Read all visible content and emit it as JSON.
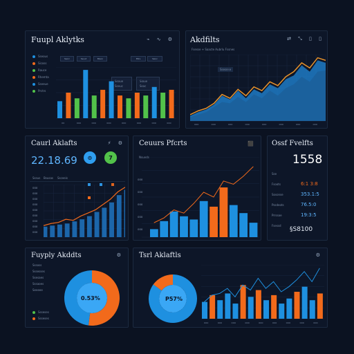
{
  "colors": {
    "orange": "#f26a1b",
    "blue": "#1e90e0",
    "green": "#52c24a",
    "navy": "#0b1221",
    "panel": "#0d1628",
    "border": "#1c2a40"
  },
  "p1": {
    "title": "Fuupl Aklytks",
    "icons": [
      "⌁",
      "∿",
      "⚙"
    ],
    "tabs": [
      "Ssorc",
      "Ssuut",
      "Bleoc",
      "Ellrs",
      "Ssioc"
    ],
    "legend": [
      {
        "label": "Sseous",
        "color": "#1e90e0"
      },
      {
        "label": "Sicoss",
        "color": "#f26a1b"
      },
      {
        "label": "Rauce",
        "color": "#52c24a"
      },
      {
        "label": "Rhemta",
        "color": "#f26a1b"
      },
      {
        "label": "Sseeue",
        "color": "#1e90e0"
      },
      {
        "label": "Prctrs",
        "color": "#52c24a"
      }
    ],
    "tooltip1": [
      "Ssoue",
      "Sseuc"
    ],
    "tooltip2": [
      "Sioue",
      "Ssoc"
    ],
    "xticks": [
      "oo",
      "ooo",
      "ooo",
      "ooo",
      "ooo",
      "ooo",
      "ooo",
      "ooo"
    ]
  },
  "p2": {
    "title": "Akdfilts",
    "icons": [
      "⇄",
      "⤡",
      "▯",
      "▯"
    ],
    "subtitle": "Fsesse + Saacte Aubrlu Fssnes",
    "label": "Ssesese",
    "xticks": [
      "ooo",
      "ooo",
      "ooo",
      "ooo",
      "ooo",
      "ooo",
      "ooo",
      "ooo"
    ]
  },
  "p3": {
    "title": "Caurl Aklafts",
    "icons": [
      "⚡",
      "⚙"
    ],
    "value": "22.18.69",
    "badge1": "⊙",
    "badge2": "7",
    "toolbar": [
      "Sssus",
      "Bsusas",
      "Ssceeis"
    ],
    "yticks": [
      "ooo",
      "ooo",
      "ooo",
      "ooo",
      "ooo",
      "ooo",
      "ooo",
      "ooo",
      "ooo"
    ]
  },
  "p4": {
    "title": "Ceuurs Pfcrts",
    "icon": "⬛",
    "label": "Nsueds",
    "yticks": [
      "ooo",
      "ooo",
      "ooo",
      "ooo",
      "ooo"
    ]
  },
  "p5": {
    "title": "Ossf Fvelfts",
    "value": "1558",
    "rows": [
      {
        "label": "Sse",
        "value": ""
      },
      {
        "label": "Fsoots",
        "value": "6:1 3:8"
      },
      {
        "label": "Sosonse",
        "value": "353.1:5"
      },
      {
        "label": "Pssdeots",
        "value": "76.5:0"
      },
      {
        "label": "Prrssoe",
        "value": "19:3:5"
      },
      {
        "label": "Fsessd",
        "value": ""
      }
    ],
    "footer": "§S8100"
  },
  "p6": {
    "title": "Fuyply Akddts",
    "icon": "⚙",
    "donut_label": "0.53%",
    "legend": [
      "Sssoss",
      "Sssesses",
      "Ssesaes",
      "Sssaoes",
      "Seeeee"
    ],
    "legend_bottom": [
      {
        "label": "Ssseses",
        "color": "#52c24a"
      },
      {
        "label": "Ssseses",
        "color": "#f26a1b"
      }
    ]
  },
  "p7": {
    "title": "Tsrl Aklaftls",
    "icon": "⚙",
    "donut_label": "P57%",
    "xticks": [
      "ooo",
      "ooo",
      "ooo",
      "ooo",
      "ooo",
      "ooo",
      "ooo",
      "ooo",
      "ooo"
    ]
  },
  "chart_data": [
    {
      "type": "bar",
      "series": [
        {
          "values": [
            6,
            9,
            7,
            17,
            8,
            10,
            13,
            8,
            7,
            9,
            8,
            11,
            9,
            10
          ],
          "colors": [
            "#1e90e0",
            "#f26a1b",
            "#52c24a",
            "#1e90e0",
            "#52c24a",
            "#f26a1b",
            "#1e90e0",
            "#f26a1b",
            "#52c24a",
            "#f26a1b",
            "#52c24a",
            "#1e90e0",
            "#52c24a",
            "#f26a1b"
          ]
        }
      ]
    },
    {
      "type": "area",
      "series": [
        {
          "values": [
            8,
            14,
            18,
            26,
            40,
            34,
            48,
            36,
            50,
            44,
            58,
            52,
            66,
            72,
            88,
            78,
            96,
            92
          ],
          "color": "#1f7ac4"
        },
        {
          "values": [
            6,
            10,
            14,
            22,
            30,
            28,
            38,
            30,
            42,
            36,
            48,
            40,
            52,
            58,
            70,
            62,
            78,
            80
          ],
          "color": "#1b5f9a"
        }
      ],
      "line": {
        "values": [
          10,
          16,
          20,
          28,
          42,
          36,
          50,
          40,
          54,
          48,
          62,
          56,
          70,
          78,
          92,
          84,
          100,
          96
        ],
        "color": "#e8922b"
      }
    },
    {
      "type": "area",
      "series": [
        {
          "values": [
            20,
            22,
            24,
            26,
            30,
            34,
            40,
            48,
            56,
            66,
            80,
            90
          ],
          "color": "#1e6fb8"
        }
      ],
      "line": {
        "values": [
          22,
          26,
          28,
          34,
          32,
          40,
          46,
          52,
          62,
          72,
          86,
          95
        ],
        "color": "#f26a1b"
      }
    },
    {
      "type": "bar",
      "series": [
        {
          "values": [
            10,
            20,
            32,
            26,
            22,
            45,
            38,
            62,
            40,
            30,
            18
          ],
          "colors": [
            "#1e90e0",
            "#1e90e0",
            "#1e90e0",
            "#1e90e0",
            "#1e90e0",
            "#1e90e0",
            "#f26a1b",
            "#f26a1b",
            "#1e90e0",
            "#1e90e0",
            "#1e90e0"
          ]
        }
      ],
      "line": {
        "values": [
          18,
          24,
          34,
          30,
          42,
          56,
          50,
          70,
          66,
          76,
          88
        ],
        "color": "#f26a1b"
      }
    },
    {
      "type": "pie",
      "series": [
        {
          "values": [
            52,
            48
          ],
          "colors": [
            "#f26a1b",
            "#1e90e0"
          ]
        }
      ]
    },
    {
      "type": "pie",
      "series": [
        {
          "values": [
            85,
            15
          ],
          "colors": [
            "#1e90e0",
            "#f26a1b"
          ]
        }
      ]
    },
    {
      "type": "bar",
      "series": [
        {
          "values": [
            20,
            28,
            22,
            30,
            18,
            40,
            26,
            34,
            22,
            28,
            18,
            24,
            32,
            38,
            22,
            30
          ],
          "colors": [
            "#1e90e0",
            "#f26a1b",
            "#1e90e0",
            "#1e90e0",
            "#1e90e0",
            "#f26a1b",
            "#1e90e0",
            "#f26a1b",
            "#1e90e0",
            "#f26a1b",
            "#1e90e0",
            "#1e90e0",
            "#f26a1b",
            "#1e90e0",
            "#1e90e0",
            "#f26a1b"
          ]
        }
      ],
      "line": {
        "values": [
          20,
          28,
          30,
          36,
          26,
          40,
          34,
          48,
          36,
          44,
          32,
          38,
          46,
          56,
          44,
          60
        ],
        "color": "#1e90e0"
      }
    }
  ]
}
